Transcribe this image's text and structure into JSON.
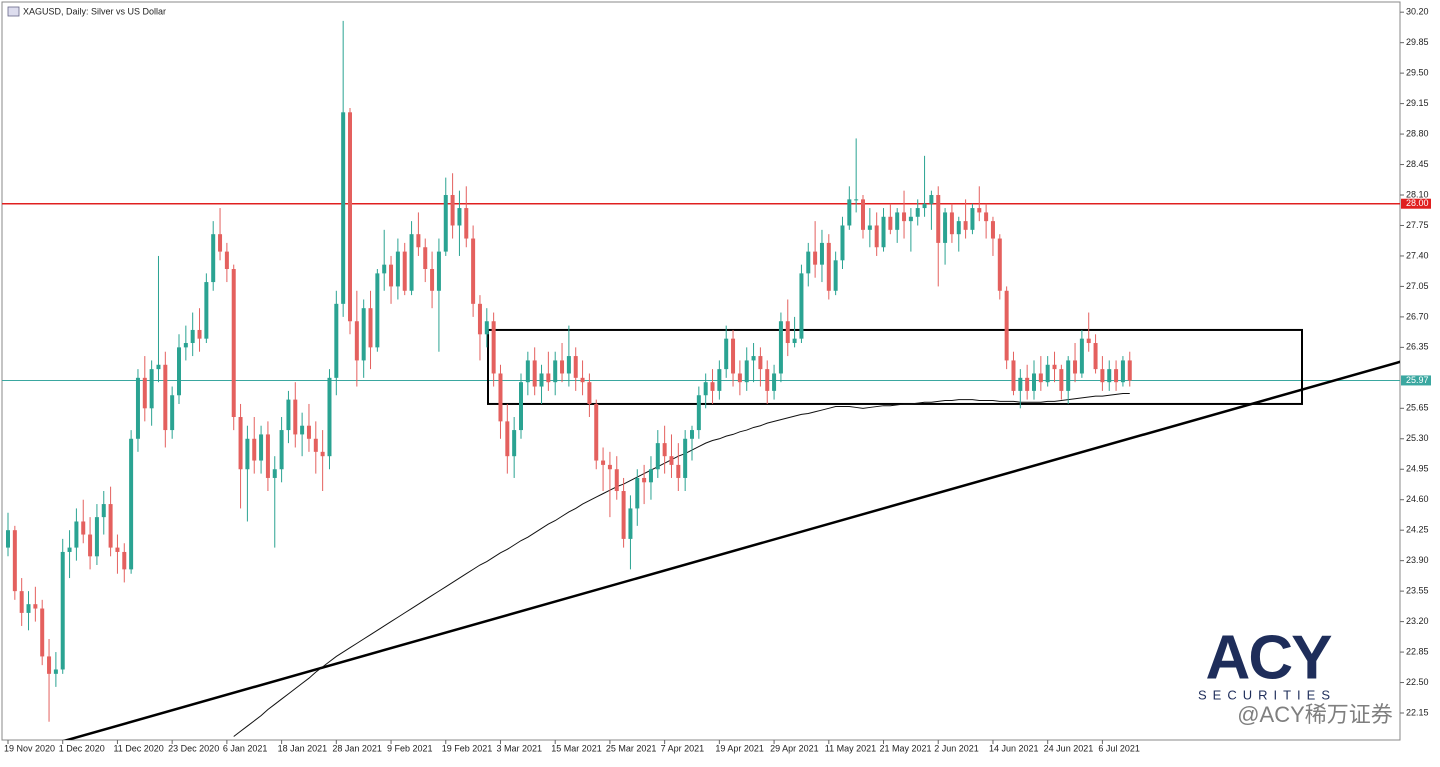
{
  "chart_data": {
    "type": "candlestick",
    "title": "XAGUSD, Daily:  Silver vs US Dollar",
    "up_color": "#2aa392",
    "down_color": "#e4605e",
    "ylim": [
      21.84,
      30.34
    ],
    "yticks": [
      {
        "value": 30.2,
        "label": "30.20"
      },
      29.85,
      {
        "value": 29.5,
        "label": "29.50"
      },
      29.15,
      {
        "value": 28.8,
        "label": "28.80"
      },
      28.45,
      {
        "value": 28.1,
        "label": "28.10"
      },
      27.75,
      {
        "value": 27.4,
        "label": "27.40"
      },
      27.05,
      {
        "value": 26.7,
        "label": "26.70"
      },
      26.35,
      25.65,
      {
        "value": 25.3,
        "label": "25.30"
      },
      24.95,
      {
        "value": 24.6,
        "label": "24.60"
      },
      24.25,
      {
        "value": 23.9,
        "label": "23.90"
      },
      23.55,
      {
        "value": 23.2,
        "label": "23.20"
      },
      22.85,
      {
        "value": 22.5,
        "label": "22.50"
      },
      22.15
    ],
    "categories": [
      "19 Nov 2020",
      null,
      null,
      null,
      null,
      null,
      null,
      null,
      "1 Dec 2020",
      null,
      null,
      null,
      null,
      null,
      null,
      null,
      "11 Dec 2020",
      null,
      null,
      null,
      null,
      null,
      null,
      null,
      "23 Dec 2020",
      null,
      null,
      null,
      null,
      null,
      null,
      null,
      "6 Jan 2021",
      null,
      null,
      null,
      null,
      null,
      null,
      null,
      "18 Jan 2021",
      null,
      null,
      null,
      null,
      null,
      null,
      null,
      "28 Jan 2021",
      null,
      null,
      null,
      null,
      null,
      null,
      null,
      "9 Feb 2021",
      null,
      null,
      null,
      null,
      null,
      null,
      null,
      "19 Feb 2021",
      null,
      null,
      null,
      null,
      null,
      null,
      null,
      "3 Mar 2021",
      null,
      null,
      null,
      null,
      null,
      null,
      null,
      "15 Mar 2021",
      null,
      null,
      null,
      null,
      null,
      null,
      null,
      "25 Mar 2021",
      null,
      null,
      null,
      null,
      null,
      null,
      null,
      "7 Apr 2021",
      null,
      null,
      null,
      null,
      null,
      null,
      null,
      "19 Apr 2021",
      null,
      null,
      null,
      null,
      null,
      null,
      null,
      "29 Apr 2021",
      null,
      null,
      null,
      null,
      null,
      null,
      null,
      "11 May 2021",
      null,
      null,
      null,
      null,
      null,
      null,
      null,
      "21 May 2021",
      null,
      null,
      null,
      null,
      null,
      null,
      null,
      "2 Jun 2021",
      null,
      null,
      null,
      null,
      null,
      null,
      null,
      "14 Jun 2021",
      null,
      null,
      null,
      null,
      null,
      null,
      null,
      "24 Jun 2021",
      null,
      null,
      null,
      null,
      null,
      null,
      null,
      "6 Jul 2021",
      null,
      null,
      null,
      null
    ],
    "ohlc": [
      [
        24.05,
        24.45,
        23.95,
        24.25
      ],
      [
        24.25,
        24.3,
        23.45,
        23.55
      ],
      [
        23.55,
        23.7,
        23.15,
        23.3
      ],
      [
        23.3,
        23.55,
        23.1,
        23.4
      ],
      [
        23.4,
        23.6,
        23.2,
        23.35
      ],
      [
        23.35,
        23.45,
        22.7,
        22.8
      ],
      [
        22.8,
        23.0,
        22.05,
        22.6
      ],
      [
        22.6,
        22.85,
        22.45,
        22.65
      ],
      [
        22.65,
        24.15,
        22.6,
        24.0
      ],
      [
        24.0,
        24.25,
        23.7,
        24.05
      ],
      [
        24.05,
        24.5,
        23.9,
        24.35
      ],
      [
        24.35,
        24.6,
        24.1,
        24.2
      ],
      [
        24.2,
        24.4,
        23.8,
        23.95
      ],
      [
        23.95,
        24.55,
        23.85,
        24.4
      ],
      [
        24.4,
        24.7,
        24.2,
        24.55
      ],
      [
        24.55,
        24.75,
        23.95,
        24.05
      ],
      [
        24.05,
        24.2,
        23.75,
        24.0
      ],
      [
        24.0,
        24.1,
        23.65,
        23.8
      ],
      [
        23.8,
        25.4,
        23.75,
        25.3
      ],
      [
        25.3,
        26.1,
        25.15,
        26.0
      ],
      [
        26.0,
        26.25,
        25.5,
        25.65
      ],
      [
        25.65,
        26.2,
        25.45,
        26.1
      ],
      [
        26.1,
        27.4,
        25.95,
        26.15
      ],
      [
        26.15,
        26.3,
        25.2,
        25.4
      ],
      [
        25.4,
        25.9,
        25.3,
        25.8
      ],
      [
        25.8,
        26.5,
        25.7,
        26.35
      ],
      [
        26.35,
        26.6,
        26.2,
        26.4
      ],
      [
        26.4,
        26.75,
        26.25,
        26.55
      ],
      [
        26.55,
        26.8,
        26.3,
        26.45
      ],
      [
        26.45,
        27.2,
        26.4,
        27.1
      ],
      [
        27.1,
        27.8,
        27.0,
        27.65
      ],
      [
        27.65,
        27.95,
        27.35,
        27.45
      ],
      [
        27.45,
        27.55,
        27.1,
        27.25
      ],
      [
        27.25,
        27.3,
        25.4,
        25.55
      ],
      [
        25.55,
        25.7,
        24.5,
        24.95
      ],
      [
        24.95,
        25.45,
        24.35,
        25.3
      ],
      [
        25.3,
        25.55,
        24.9,
        25.05
      ],
      [
        25.05,
        25.45,
        24.9,
        25.35
      ],
      [
        25.35,
        25.5,
        24.7,
        24.85
      ],
      [
        24.85,
        25.1,
        24.05,
        24.95
      ],
      [
        24.95,
        25.55,
        24.8,
        25.4
      ],
      [
        25.4,
        25.85,
        25.25,
        25.75
      ],
      [
        25.75,
        25.95,
        25.2,
        25.35
      ],
      [
        25.35,
        25.6,
        25.1,
        25.45
      ],
      [
        25.45,
        25.7,
        25.15,
        25.3
      ],
      [
        25.3,
        25.5,
        24.9,
        25.15
      ],
      [
        25.15,
        25.4,
        24.7,
        25.1
      ],
      [
        25.1,
        26.1,
        24.95,
        26.0
      ],
      [
        26.0,
        27.0,
        25.8,
        26.85
      ],
      [
        26.85,
        30.1,
        26.7,
        29.05
      ],
      [
        29.05,
        29.1,
        26.5,
        26.65
      ],
      [
        26.65,
        27.0,
        25.9,
        26.2
      ],
      [
        26.2,
        26.9,
        26.0,
        26.8
      ],
      [
        26.8,
        27.0,
        26.1,
        26.35
      ],
      [
        26.35,
        27.25,
        26.3,
        27.2
      ],
      [
        27.2,
        27.7,
        27.0,
        27.3
      ],
      [
        27.3,
        27.4,
        26.85,
        27.05
      ],
      [
        27.05,
        27.6,
        26.9,
        27.45
      ],
      [
        27.45,
        27.55,
        26.95,
        27.0
      ],
      [
        27.0,
        27.8,
        26.95,
        27.65
      ],
      [
        27.65,
        27.9,
        27.4,
        27.5
      ],
      [
        27.5,
        27.6,
        27.1,
        27.25
      ],
      [
        27.25,
        27.45,
        26.8,
        27.0
      ],
      [
        27.0,
        27.6,
        26.3,
        27.45
      ],
      [
        27.45,
        28.3,
        27.4,
        28.1
      ],
      [
        28.1,
        28.35,
        27.6,
        27.75
      ],
      [
        27.75,
        28.15,
        27.4,
        27.95
      ],
      [
        27.95,
        28.2,
        27.5,
        27.6
      ],
      [
        27.6,
        27.75,
        26.7,
        26.85
      ],
      [
        26.85,
        26.95,
        26.2,
        26.5
      ],
      [
        26.5,
        26.8,
        26.35,
        26.65
      ],
      [
        26.65,
        26.75,
        25.9,
        26.05
      ],
      [
        26.05,
        26.15,
        25.3,
        25.5
      ],
      [
        25.5,
        25.7,
        24.9,
        25.1
      ],
      [
        25.1,
        25.55,
        24.85,
        25.4
      ],
      [
        25.4,
        26.05,
        25.3,
        25.95
      ],
      [
        25.95,
        26.3,
        25.8,
        26.2
      ],
      [
        26.2,
        26.35,
        25.8,
        25.9
      ],
      [
        25.9,
        26.15,
        25.7,
        26.05
      ],
      [
        26.05,
        26.3,
        25.85,
        25.95
      ],
      [
        25.95,
        26.3,
        25.8,
        26.2
      ],
      [
        26.2,
        26.4,
        25.95,
        26.05
      ],
      [
        26.05,
        26.6,
        25.9,
        26.25
      ],
      [
        26.25,
        26.35,
        25.85,
        26.0
      ],
      [
        26.0,
        26.2,
        25.8,
        25.95
      ],
      [
        25.95,
        26.05,
        25.55,
        25.7
      ],
      [
        25.7,
        25.75,
        24.95,
        25.05
      ],
      [
        25.05,
        25.2,
        24.7,
        25.0
      ],
      [
        25.0,
        25.15,
        24.4,
        24.95
      ],
      [
        24.95,
        25.1,
        24.6,
        24.7
      ],
      [
        24.7,
        24.85,
        24.05,
        24.15
      ],
      [
        24.15,
        24.65,
        23.8,
        24.5
      ],
      [
        24.5,
        24.95,
        24.3,
        24.85
      ],
      [
        24.85,
        25.0,
        24.55,
        24.8
      ],
      [
        24.8,
        25.1,
        24.6,
        24.95
      ],
      [
        24.95,
        25.4,
        24.85,
        25.25
      ],
      [
        25.25,
        25.45,
        24.9,
        25.1
      ],
      [
        25.1,
        25.35,
        24.85,
        25.0
      ],
      [
        25.0,
        25.25,
        24.7,
        24.85
      ],
      [
        24.85,
        25.4,
        24.7,
        25.3
      ],
      [
        25.3,
        25.45,
        25.05,
        25.4
      ],
      [
        25.4,
        25.9,
        25.3,
        25.8
      ],
      [
        25.8,
        26.05,
        25.65,
        25.95
      ],
      [
        25.95,
        26.1,
        25.7,
        25.85
      ],
      [
        25.85,
        26.2,
        25.75,
        26.1
      ],
      [
        26.1,
        26.6,
        26.0,
        26.45
      ],
      [
        26.45,
        26.55,
        25.9,
        26.05
      ],
      [
        26.05,
        26.2,
        25.8,
        25.95
      ],
      [
        25.95,
        26.35,
        25.85,
        26.2
      ],
      [
        26.2,
        26.4,
        25.95,
        26.25
      ],
      [
        26.25,
        26.35,
        25.9,
        26.1
      ],
      [
        26.1,
        26.2,
        25.7,
        25.85
      ],
      [
        25.85,
        26.15,
        25.75,
        26.05
      ],
      [
        26.05,
        26.75,
        25.95,
        26.65
      ],
      [
        26.65,
        26.9,
        26.25,
        26.4
      ],
      [
        26.4,
        26.7,
        26.35,
        26.45
      ],
      [
        26.45,
        27.3,
        26.4,
        27.2
      ],
      [
        27.2,
        27.55,
        27.05,
        27.45
      ],
      [
        27.45,
        27.8,
        27.15,
        27.3
      ],
      [
        27.3,
        27.7,
        27.1,
        27.55
      ],
      [
        27.55,
        27.65,
        26.9,
        27.0
      ],
      [
        27.0,
        27.45,
        26.95,
        27.35
      ],
      [
        27.35,
        27.85,
        27.25,
        27.75
      ],
      [
        27.75,
        28.2,
        27.7,
        28.05
      ],
      [
        28.05,
        28.75,
        27.9,
        28.05
      ],
      [
        28.05,
        28.1,
        27.6,
        27.7
      ],
      [
        27.7,
        27.95,
        27.5,
        27.75
      ],
      [
        27.75,
        27.9,
        27.4,
        27.5
      ],
      [
        27.5,
        27.95,
        27.45,
        27.85
      ],
      [
        27.85,
        28.0,
        27.65,
        27.7
      ],
      [
        27.7,
        27.95,
        27.55,
        27.9
      ],
      [
        27.9,
        28.15,
        27.6,
        27.8
      ],
      [
        27.8,
        27.95,
        27.45,
        27.85
      ],
      [
        27.85,
        28.05,
        27.75,
        27.95
      ],
      [
        27.95,
        28.55,
        27.85,
        28.0
      ],
      [
        28.0,
        28.15,
        27.7,
        28.1
      ],
      [
        28.1,
        28.2,
        27.05,
        27.55
      ],
      [
        27.55,
        27.95,
        27.3,
        27.9
      ],
      [
        27.9,
        28.0,
        27.55,
        27.65
      ],
      [
        27.65,
        27.85,
        27.45,
        27.8
      ],
      [
        27.8,
        28.05,
        27.6,
        27.7
      ],
      [
        27.7,
        28.0,
        27.65,
        27.95
      ],
      [
        27.95,
        28.2,
        27.8,
        27.9
      ],
      [
        27.9,
        28.0,
        27.6,
        27.8
      ],
      [
        27.8,
        27.85,
        27.4,
        27.6
      ],
      [
        27.6,
        27.65,
        26.9,
        27.0
      ],
      [
        27.0,
        27.05,
        26.1,
        26.2
      ],
      [
        26.2,
        26.3,
        25.8,
        25.85
      ],
      [
        25.85,
        26.1,
        25.65,
        26.0
      ],
      [
        26.0,
        26.15,
        25.75,
        25.85
      ],
      [
        25.85,
        26.2,
        25.75,
        26.05
      ],
      [
        26.05,
        26.25,
        25.85,
        25.95
      ],
      [
        25.95,
        26.25,
        25.9,
        26.15
      ],
      [
        26.15,
        26.3,
        25.95,
        26.1
      ],
      [
        26.1,
        26.15,
        25.75,
        25.85
      ],
      [
        25.85,
        26.25,
        25.7,
        26.2
      ],
      [
        26.2,
        26.4,
        25.95,
        26.05
      ],
      [
        26.05,
        26.55,
        26.0,
        26.45
      ],
      [
        26.45,
        26.75,
        26.3,
        26.4
      ],
      [
        26.4,
        26.5,
        26.05,
        26.1
      ],
      [
        26.1,
        26.25,
        25.85,
        25.95
      ],
      [
        25.95,
        26.2,
        25.85,
        26.1
      ],
      [
        26.1,
        26.2,
        25.85,
        25.95
      ],
      [
        25.95,
        26.25,
        25.9,
        26.2
      ],
      [
        26.2,
        26.3,
        25.9,
        25.97
      ]
    ],
    "ma": {
      "color": "#111111",
      "values": [
        null,
        null,
        null,
        null,
        null,
        null,
        null,
        null,
        null,
        null,
        null,
        null,
        null,
        null,
        null,
        null,
        null,
        null,
        null,
        null,
        null,
        null,
        null,
        null,
        null,
        null,
        null,
        null,
        null,
        null,
        null,
        null,
        null,
        21.88,
        21.94,
        22.0,
        22.06,
        22.12,
        22.19,
        22.25,
        22.31,
        22.37,
        22.43,
        22.49,
        22.55,
        22.62,
        22.68,
        22.74,
        22.8,
        22.85,
        22.9,
        22.95,
        23.0,
        23.05,
        23.1,
        23.15,
        23.2,
        23.25,
        23.3,
        23.35,
        23.4,
        23.45,
        23.5,
        23.55,
        23.6,
        23.65,
        23.7,
        23.75,
        23.8,
        23.85,
        23.89,
        23.94,
        23.99,
        24.03,
        24.08,
        24.13,
        24.17,
        24.22,
        24.27,
        24.32,
        24.36,
        24.41,
        24.46,
        24.5,
        24.55,
        24.59,
        24.63,
        24.67,
        24.71,
        24.75,
        24.78,
        24.82,
        24.86,
        24.9,
        24.94,
        24.98,
        25.02,
        25.06,
        25.1,
        25.13,
        25.17,
        25.21,
        25.25,
        25.28,
        25.3,
        25.33,
        25.35,
        25.38,
        25.4,
        25.43,
        25.45,
        25.48,
        25.5,
        25.52,
        25.54,
        25.56,
        25.58,
        25.59,
        25.61,
        25.63,
        25.65,
        25.67,
        25.67,
        25.67,
        25.66,
        25.65,
        25.66,
        25.67,
        25.68,
        25.68,
        25.69,
        25.7,
        25.7,
        25.71,
        25.72,
        25.72,
        25.73,
        25.74,
        25.74,
        25.75,
        25.75,
        25.75,
        25.74,
        25.74,
        25.74,
        25.73,
        25.73,
        25.73,
        25.72,
        25.72,
        25.72,
        25.72,
        25.73,
        25.73,
        25.74,
        25.75,
        25.76,
        25.77,
        25.78,
        25.79,
        25.79,
        25.8,
        25.81,
        25.82,
        25.82
      ]
    },
    "level": {
      "value": 28.0,
      "label": "28.00",
      "color": "#e02020"
    },
    "price_line": {
      "value": 25.97,
      "label": "25.97",
      "color": "#3aa7a0"
    },
    "box": {
      "top": 26.55,
      "bottom": 25.7
    },
    "trendline": {
      "values": [
        21.8,
        26.2
      ]
    },
    "logo": "ACY",
    "logo_sub": "SECURITIES",
    "watermark": "@ACY稀万证券"
  }
}
